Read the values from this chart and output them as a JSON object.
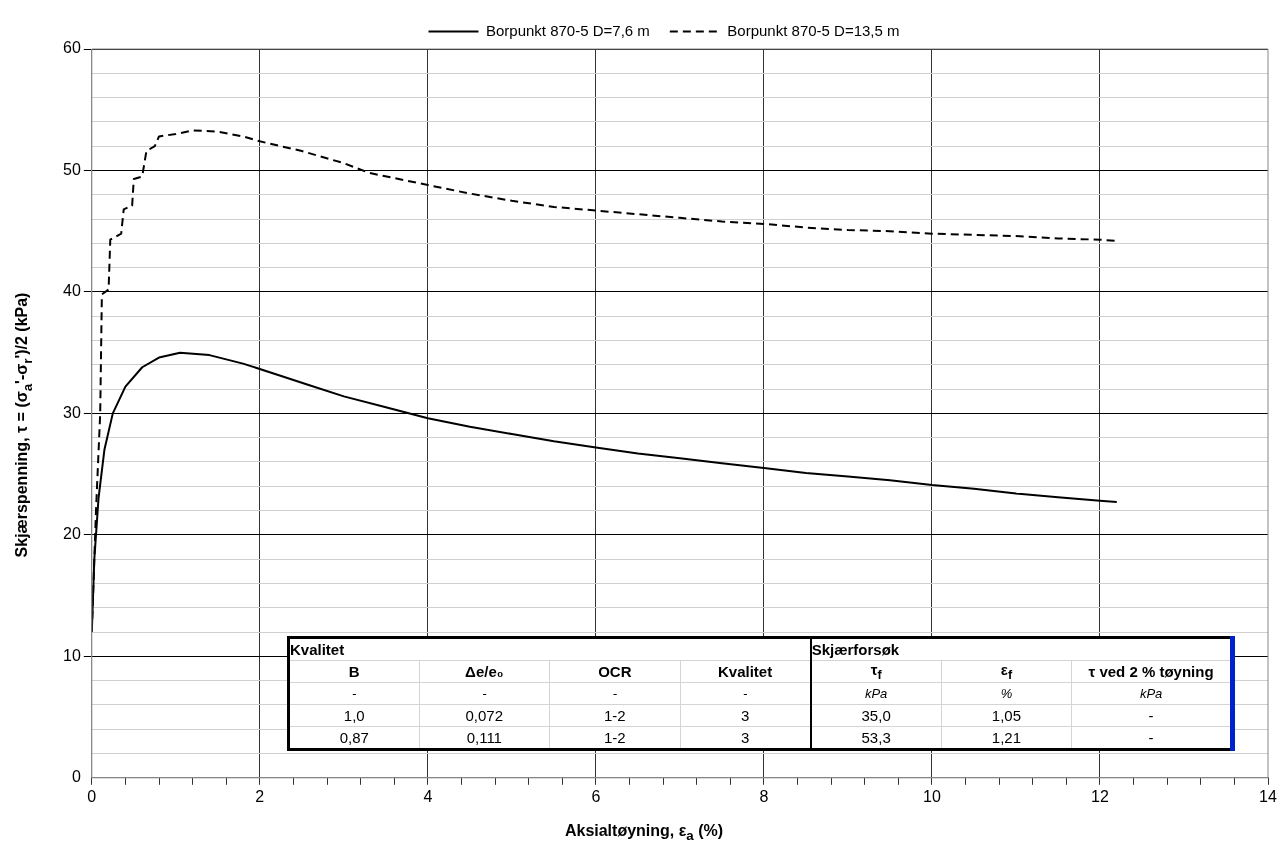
{
  "chart_data": {
    "type": "line",
    "xlabel": "Aksialtøyning, ε$_{a}$ (%)",
    "ylabel": "Skjærspenning, τ = (σ$_{a}$'-σ$_{r}$')/2 (kPa)",
    "xlim": [
      0,
      14
    ],
    "xticks": [
      0,
      {
        "value": 0.4,
        "label": null
      },
      {
        "value": 0.8,
        "label": null
      },
      {
        "value": 1.2,
        "label": null
      },
      {
        "value": 1.6,
        "label": null
      },
      2,
      {
        "value": 2.4,
        "label": null
      },
      {
        "value": 2.8,
        "label": null
      },
      {
        "value": 3.2,
        "label": null
      },
      {
        "value": 3.6,
        "label": null
      },
      4,
      {
        "value": 4.4,
        "label": null
      },
      {
        "value": 4.8,
        "label": null
      },
      {
        "value": 5.2,
        "label": null
      },
      {
        "value": 5.6,
        "label": null
      },
      6,
      {
        "value": 6.4,
        "label": null
      },
      {
        "value": 6.8,
        "label": null
      },
      {
        "value": 7.2,
        "label": null
      },
      {
        "value": 7.6,
        "label": null
      },
      8,
      {
        "value": 8.4,
        "label": null
      },
      {
        "value": 8.8,
        "label": null
      },
      {
        "value": 9.2,
        "label": null
      },
      {
        "value": 9.6,
        "label": null
      },
      10,
      {
        "value": 10.4,
        "label": null
      },
      {
        "value": 10.8,
        "label": null
      },
      {
        "value": 11.2,
        "label": null
      },
      {
        "value": 11.6,
        "label": null
      },
      12,
      {
        "value": 12.4,
        "label": null
      },
      {
        "value": 12.8,
        "label": null
      },
      {
        "value": 13.2,
        "label": null
      },
      {
        "value": 13.6,
        "label": null
      },
      14
    ],
    "ylim": [
      0,
      60
    ],
    "yticks": [
      0,
      {
        "value": 2,
        "label": null
      },
      {
        "value": 4,
        "label": null
      },
      {
        "value": 6,
        "label": null
      },
      {
        "value": 8,
        "label": null
      },
      10,
      {
        "value": 12,
        "label": null
      },
      {
        "value": 14,
        "label": null
      },
      {
        "value": 16,
        "label": null
      },
      {
        "value": 18,
        "label": null
      },
      20,
      {
        "value": 22,
        "label": null
      },
      {
        "value": 24,
        "label": null
      },
      {
        "value": 26,
        "label": null
      },
      {
        "value": 28,
        "label": null
      },
      30,
      {
        "value": 32,
        "label": null
      },
      {
        "value": 34,
        "label": null
      },
      {
        "value": 36,
        "label": null
      },
      {
        "value": 38,
        "label": null
      },
      40,
      {
        "value": 42,
        "label": null
      },
      {
        "value": 44,
        "label": null
      },
      {
        "value": 46,
        "label": null
      },
      {
        "value": 48,
        "label": null
      },
      50,
      {
        "value": 52,
        "label": null
      },
      {
        "value": 54,
        "label": null
      },
      {
        "value": 56,
        "label": null
      },
      {
        "value": 58,
        "label": null
      },
      60
    ],
    "grid": true,
    "legend": "top",
    "marker": "none",
    "series": [
      {
        "name": "Borpunkt 870-5 D=7,6 m",
        "color": "#000000",
        "line_style": "solid",
        "x": [
          0,
          0.03,
          0.08,
          0.15,
          0.25,
          0.4,
          0.6,
          0.8,
          1.05,
          1.4,
          1.8,
          2.2,
          2.6,
          3,
          3.5,
          4,
          4.5,
          5,
          5.5,
          6,
          6.5,
          7,
          7.5,
          8,
          8.5,
          9,
          9.5,
          10,
          10.5,
          11,
          11.5,
          12,
          12.2
        ],
        "values": [
          12,
          18,
          23,
          27,
          30,
          32.2,
          33.8,
          34.6,
          35,
          34.8,
          34.1,
          33.2,
          32.3,
          31.4,
          30.5,
          29.6,
          28.9,
          28.3,
          27.7,
          27.2,
          26.7,
          26.3,
          25.9,
          25.5,
          25.1,
          24.8,
          24.5,
          24.1,
          23.8,
          23.4,
          23.1,
          22.8,
          22.7
        ]
      },
      {
        "name": "Borpunkt 870-5 D=13,5 m",
        "color": "#000000",
        "line_style": "dashed",
        "x": [
          0,
          0.05,
          0.1,
          0.12,
          0.2,
          0.22,
          0.35,
          0.38,
          0.48,
          0.5,
          0.6,
          0.65,
          0.75,
          0.8,
          1,
          1.21,
          1.5,
          1.8,
          2,
          2.5,
          3,
          3.3,
          4,
          4.5,
          5,
          5.5,
          6,
          6.5,
          7,
          7.5,
          8,
          8.5,
          9,
          9.5,
          10,
          10.5,
          11,
          11.5,
          12,
          12.2
        ],
        "values": [
          12,
          22,
          30,
          39.8,
          40.2,
          44.3,
          44.8,
          46.8,
          47.1,
          49.3,
          49.5,
          51.6,
          52,
          52.8,
          53,
          53.3,
          53.2,
          52.8,
          52.4,
          51.6,
          50.6,
          49.8,
          48.8,
          48.1,
          47.5,
          47,
          46.7,
          46.4,
          46.1,
          45.8,
          45.6,
          45.3,
          45.1,
          45,
          44.8,
          44.7,
          44.6,
          44.4,
          44.3,
          44.2
        ]
      }
    ],
    "annotations": [
      "Kvalitet",
      "Skjærforsøk",
      "B",
      "Δe/e₀",
      "OCR",
      "Kvalitet",
      "τ$_{f}$",
      "ε$_{f}$",
      "τ ved 2 % tøyning",
      "-",
      "-",
      "-",
      "-",
      "kPa",
      "%",
      "kPa",
      "1,0",
      "0,072",
      "1-2",
      "3",
      "35,0",
      "1,05",
      "-",
      "0,87",
      "0,111",
      "1-2",
      "3",
      "53,3",
      "1,21",
      "-"
    ]
  }
}
